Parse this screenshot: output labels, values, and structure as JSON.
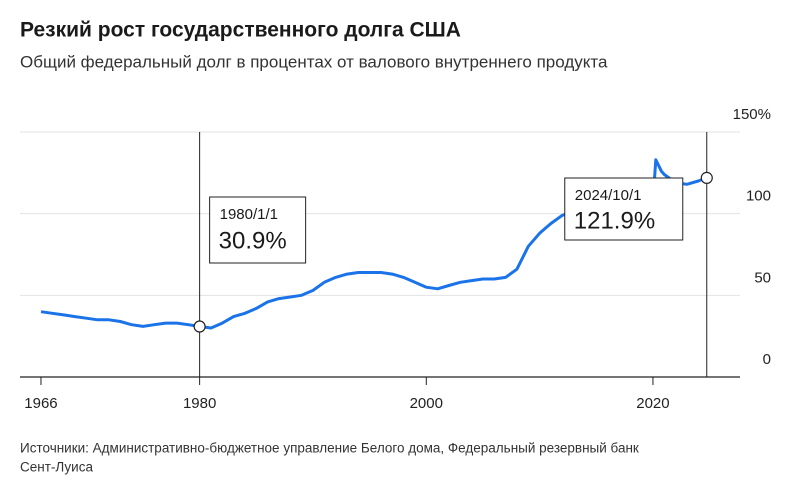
{
  "chart_data": {
    "type": "line",
    "title": "Резкий рост государственного долга США",
    "subtitle": "Общий федеральный долг в процентах от валового внутреннего продукта",
    "source": [
      "Источники: Административно-бюджетное управление Белого дома, Федеральный резервный банк",
      "Сент-Луиса"
    ],
    "x": [
      1966,
      1967,
      1968,
      1969,
      1970,
      1971,
      1972,
      1973,
      1974,
      1975,
      1976,
      1977,
      1978,
      1979,
      1980,
      1981,
      1982,
      1983,
      1984,
      1985,
      1986,
      1987,
      1988,
      1989,
      1990,
      1991,
      1992,
      1993,
      1994,
      1995,
      1996,
      1997,
      1998,
      1999,
      2000,
      2001,
      2002,
      2003,
      2004,
      2005,
      2006,
      2007,
      2008,
      2009,
      2010,
      2011,
      2012,
      2013,
      2014,
      2015,
      2016,
      2017,
      2018,
      2019,
      2020,
      2020.25,
      2020.75,
      2021,
      2022,
      2023,
      2024,
      2024.75
    ],
    "series": [
      {
        "name": "Общий федеральный долг",
        "color": "#1a73e8",
        "values": [
          40,
          39,
          38,
          37,
          36,
          35,
          35,
          34,
          32,
          31,
          32,
          33,
          33,
          32,
          30.9,
          30,
          33,
          37,
          39,
          42,
          46,
          48,
          49,
          50,
          53,
          58,
          61,
          63,
          64,
          64,
          64,
          63,
          61,
          58,
          55,
          54,
          56,
          58,
          59,
          60,
          60,
          61,
          66,
          80,
          88,
          94,
          99,
          101,
          101,
          100,
          104,
          104,
          104,
          106,
          107,
          133,
          126,
          124,
          119,
          118,
          120,
          121.9
        ]
      }
    ],
    "xlim": [
      1964,
      2028
    ],
    "xticks": [
      1966,
      1980,
      2000,
      2020
    ],
    "ylim": [
      0,
      150
    ],
    "yticks": [
      0,
      50,
      100,
      {
        "value": 150,
        "label": "150%"
      }
    ],
    "grid": true,
    "annotations": [
      {
        "x": 1980,
        "date": "1980/1/1",
        "value": 30.9,
        "value_label": "30.9%"
      },
      {
        "x": 2024.75,
        "date": "2024/10/1",
        "value": 121.9,
        "value_label": "121.9%"
      }
    ]
  }
}
